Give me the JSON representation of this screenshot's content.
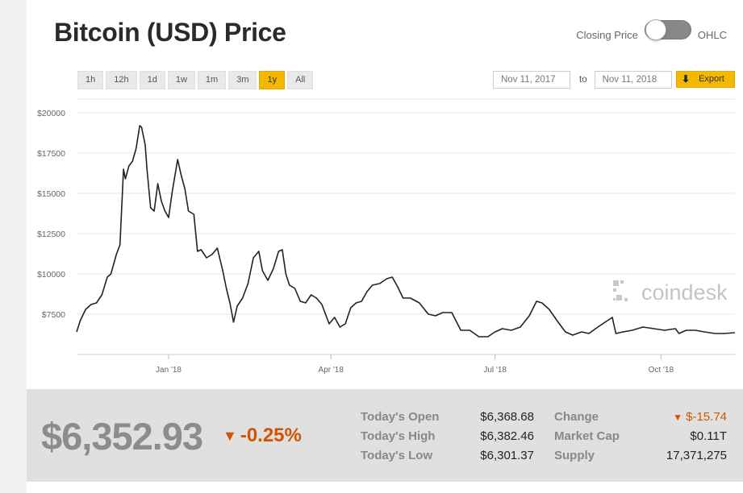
{
  "header": {
    "title": "Bitcoin (USD) Price",
    "toggle_left": "Closing Price",
    "toggle_right": "OHLC"
  },
  "ranges": [
    {
      "label": "1h",
      "active": false
    },
    {
      "label": "12h",
      "active": false
    },
    {
      "label": "1d",
      "active": false
    },
    {
      "label": "1w",
      "active": false
    },
    {
      "label": "1m",
      "active": false
    },
    {
      "label": "3m",
      "active": false
    },
    {
      "label": "1y",
      "active": true
    },
    {
      "label": "All",
      "active": false
    }
  ],
  "date_range": {
    "from": "Nov 11, 2017",
    "to_label": "to",
    "to": "Nov 11, 2018"
  },
  "export_label": "Export",
  "watermark": "coindesk",
  "chart_data": {
    "type": "line",
    "title": "",
    "xlabel": "",
    "ylabel": "",
    "yticks": [
      "$7500",
      "$10000",
      "$12500",
      "$15000",
      "$17500",
      "$20000"
    ],
    "ytick_values": [
      7500,
      10000,
      12500,
      15000,
      17500,
      20000
    ],
    "xticks": [
      "Jan '18",
      "Apr '18",
      "Jul '18",
      "Oct '18"
    ],
    "xtick_dates": [
      "2018-01-01",
      "2018-04-01",
      "2018-07-01",
      "2018-10-01"
    ],
    "xlim": [
      "2017-11-11",
      "2018-11-11"
    ],
    "ylim": [
      5000,
      21000
    ],
    "grid": true,
    "color": "#222222",
    "series": [
      {
        "x": [
          "2017-11-11",
          "2017-11-13",
          "2017-11-16",
          "2017-11-19",
          "2017-11-22",
          "2017-11-25",
          "2017-11-28",
          "2017-11-30",
          "2017-12-03",
          "2017-12-05",
          "2017-12-07",
          "2017-12-08",
          "2017-12-10",
          "2017-12-12",
          "2017-12-14",
          "2017-12-16",
          "2017-12-17",
          "2017-12-19",
          "2017-12-20",
          "2017-12-22",
          "2017-12-24",
          "2017-12-26",
          "2017-12-28",
          "2017-12-30",
          "2018-01-01",
          "2018-01-03",
          "2018-01-06",
          "2018-01-08",
          "2018-01-10",
          "2018-01-12",
          "2018-01-15",
          "2018-01-17",
          "2018-01-19",
          "2018-01-22",
          "2018-01-25",
          "2018-01-28",
          "2018-01-31",
          "2018-02-02",
          "2018-02-04",
          "2018-02-06",
          "2018-02-08",
          "2018-02-11",
          "2018-02-14",
          "2018-02-17",
          "2018-02-20",
          "2018-02-22",
          "2018-02-25",
          "2018-02-28",
          "2018-03-03",
          "2018-03-05",
          "2018-03-07",
          "2018-03-09",
          "2018-03-12",
          "2018-03-15",
          "2018-03-18",
          "2018-03-21",
          "2018-03-24",
          "2018-03-27",
          "2018-03-31",
          "2018-04-03",
          "2018-04-06",
          "2018-04-09",
          "2018-04-12",
          "2018-04-15",
          "2018-04-18",
          "2018-04-21",
          "2018-04-24",
          "2018-04-28",
          "2018-05-02",
          "2018-05-05",
          "2018-05-08",
          "2018-05-11",
          "2018-05-15",
          "2018-05-20",
          "2018-05-25",
          "2018-05-29",
          "2018-06-02",
          "2018-06-07",
          "2018-06-12",
          "2018-06-17",
          "2018-06-22",
          "2018-06-27",
          "2018-07-01",
          "2018-07-05",
          "2018-07-10",
          "2018-07-15",
          "2018-07-20",
          "2018-07-24",
          "2018-07-27",
          "2018-07-31",
          "2018-08-05",
          "2018-08-09",
          "2018-08-13",
          "2018-08-18",
          "2018-08-22",
          "2018-08-27",
          "2018-08-31",
          "2018-09-04",
          "2018-09-06",
          "2018-09-10",
          "2018-09-15",
          "2018-09-21",
          "2018-09-27",
          "2018-10-03",
          "2018-10-09",
          "2018-10-11",
          "2018-10-15",
          "2018-10-20",
          "2018-10-25",
          "2018-10-31",
          "2018-11-05",
          "2018-11-11"
        ],
        "y": [
          6400,
          7100,
          7800,
          8100,
          8200,
          8700,
          9800,
          10000,
          11200,
          11800,
          16500,
          15900,
          16700,
          17000,
          17800,
          19200,
          19100,
          18000,
          16500,
          14100,
          13900,
          15600,
          14500,
          13900,
          13500,
          15100,
          17100,
          16100,
          15300,
          13900,
          13700,
          11400,
          11500,
          11000,
          11200,
          11600,
          10200,
          9100,
          8200,
          7000,
          8000,
          8500,
          9400,
          11000,
          11400,
          10200,
          9600,
          10300,
          11400,
          11500,
          10000,
          9300,
          9100,
          8300,
          8200,
          8700,
          8500,
          8100,
          6900,
          7300,
          6700,
          6900,
          7900,
          8200,
          8300,
          8900,
          9300,
          9400,
          9700,
          9800,
          9200,
          8500,
          8500,
          8200,
          7500,
          7400,
          7600,
          7600,
          6500,
          6500,
          6100,
          6100,
          6400,
          6600,
          6500,
          6700,
          7400,
          8300,
          8200,
          7800,
          7000,
          6400,
          6200,
          6400,
          6300,
          6700,
          7000,
          7300,
          6300,
          6400,
          6500,
          6700,
          6600,
          6500,
          6600,
          6300,
          6500,
          6500,
          6400,
          6300,
          6300,
          6350
        ]
      }
    ]
  },
  "summary": {
    "price": "$6,352.93",
    "change_pct": "-0.25%",
    "change_arrow": "▼",
    "today_open_label": "Today's Open",
    "today_open": "$6,368.68",
    "today_high_label": "Today's High",
    "today_high": "$6,382.46",
    "today_low_label": "Today's Low",
    "today_low": "$6,301.37",
    "change_label": "Change",
    "change_value": "$-15.74",
    "market_cap_label": "Market Cap",
    "market_cap": "$0.11T",
    "supply_label": "Supply",
    "supply": "17,371,275",
    "down_color": "#d35400"
  }
}
